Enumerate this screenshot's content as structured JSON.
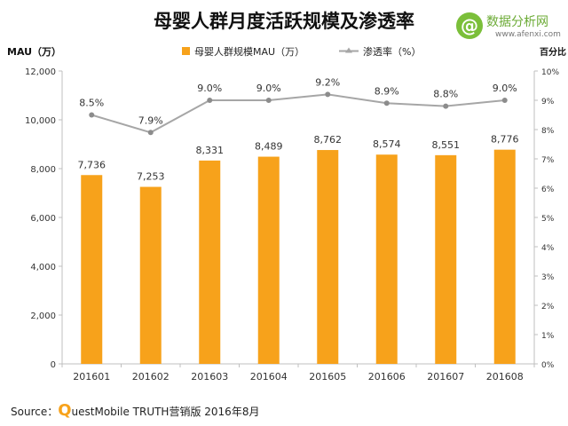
{
  "title": "母婴人群月度活跃规模及渗透率",
  "logo": {
    "symbol": "@",
    "brand": "数据分析网",
    "site": "www.afenxi.com"
  },
  "source": {
    "prefix": "Source：",
    "q_letter": "Q",
    "rest": "uestMobile TRUTH营销版 2016年8月"
  },
  "colors": {
    "bar": "#f7a21b",
    "line": "#a6a6a6",
    "axis": "#bfbfbf"
  },
  "chart_data": {
    "type": "bar",
    "left_axis_title": "MAU（万）",
    "right_axis_title": "百分比",
    "categories": [
      "201601",
      "201602",
      "201603",
      "201604",
      "201605",
      "201606",
      "201607",
      "201608"
    ],
    "ylim": [
      0,
      12000
    ],
    "y_ticks": [
      "0",
      "2,000",
      "4,000",
      "6,000",
      "8,000",
      "10,000",
      "12,000"
    ],
    "y2lim": [
      0,
      10
    ],
    "y2_ticks": [
      "0%",
      "1%",
      "2%",
      "3%",
      "4%",
      "5%",
      "6%",
      "7%",
      "8%",
      "9%",
      "10%"
    ],
    "legend_position": "top",
    "series": [
      {
        "name": "母婴人群规模MAU（万）",
        "kind": "bar",
        "axis": "left",
        "values": [
          7736,
          7253,
          8331,
          8489,
          8762,
          8574,
          8551,
          8776
        ],
        "labels": [
          "7,736",
          "7,253",
          "8,331",
          "8,489",
          "8,762",
          "8,574",
          "8,551",
          "8,776"
        ]
      },
      {
        "name": "渗透率（%）",
        "kind": "line",
        "axis": "right",
        "values": [
          8.5,
          7.9,
          9.0,
          9.0,
          9.2,
          8.9,
          8.8,
          9.0
        ],
        "labels": [
          "8.5%",
          "7.9%",
          "9.0%",
          "9.0%",
          "9.2%",
          "8.9%",
          "8.8%",
          "9.0%"
        ]
      }
    ]
  }
}
